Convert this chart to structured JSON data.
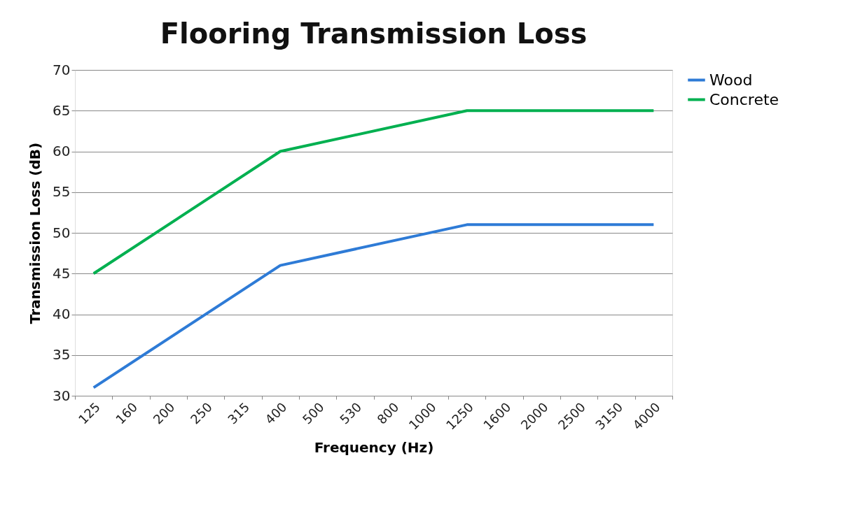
{
  "chart_data": {
    "type": "line",
    "title": "Flooring Transmission Loss",
    "xlabel": "Frequency (Hz)",
    "ylabel": "Transmission Loss (dB)",
    "categories": [
      "125",
      "160",
      "200",
      "250",
      "315",
      "400",
      "500",
      "530",
      "800",
      "1000",
      "1250",
      "1600",
      "2000",
      "2500",
      "3150",
      "4000"
    ],
    "series": [
      {
        "name": "Wood",
        "color": "#2e7bd6",
        "values": [
          31,
          null,
          null,
          null,
          null,
          46,
          null,
          null,
          null,
          null,
          51,
          null,
          null,
          null,
          null,
          51
        ]
      },
      {
        "name": "Concrete",
        "color": "#00b050",
        "values": [
          45,
          null,
          null,
          null,
          null,
          60,
          null,
          null,
          null,
          null,
          65,
          null,
          null,
          null,
          null,
          65
        ]
      }
    ],
    "ylim": [
      30,
      70
    ],
    "yticks": [
      30,
      35,
      40,
      45,
      50,
      55,
      60,
      65,
      70
    ],
    "grid": "y",
    "legend": "right",
    "marker": "none",
    "line_style": "solid"
  }
}
